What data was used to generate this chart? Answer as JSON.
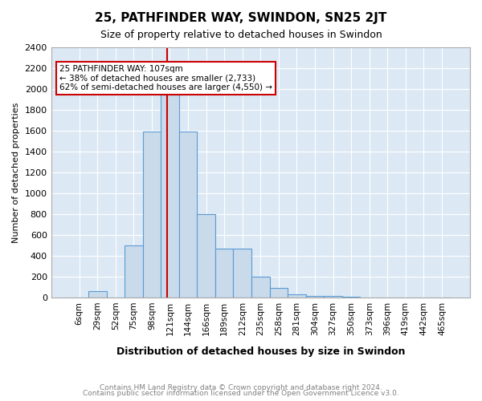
{
  "title": "25, PATHFINDER WAY, SWINDON, SN25 2JT",
  "subtitle": "Size of property relative to detached houses in Swindon",
  "xlabel": "Distribution of detached houses by size in Swindon",
  "ylabel": "Number of detached properties",
  "footer1": "Contains HM Land Registry data © Crown copyright and database right 2024.",
  "footer2": "Contains public sector information licensed under the Open Government Licence v3.0.",
  "bar_labels": [
    "6sqm",
    "29sqm",
    "52sqm",
    "75sqm",
    "98sqm",
    "121sqm",
    "144sqm",
    "166sqm",
    "189sqm",
    "212sqm",
    "235sqm",
    "258sqm",
    "281sqm",
    "304sqm",
    "327sqm",
    "350sqm",
    "373sqm",
    "396sqm",
    "419sqm",
    "442sqm",
    "465sqm"
  ],
  "bar_values": [
    0,
    60,
    0,
    500,
    1590,
    1950,
    1590,
    800,
    470,
    470,
    200,
    95,
    30,
    20,
    20,
    10,
    0,
    0,
    0,
    0,
    0
  ],
  "bar_color": "#c9daea",
  "bar_edgecolor": "#5b9bd5",
  "background_color": "#dce9f5",
  "vline_x": 4.85,
  "vline_color": "#cc0000",
  "annotation_text": "25 PATHFINDER WAY: 107sqm\n← 38% of detached houses are smaller (2,733)\n62% of semi-detached houses are larger (4,550) →",
  "annotation_box_edgecolor": "#cc0000",
  "ylim": [
    0,
    2400
  ],
  "yticks": [
    0,
    200,
    400,
    600,
    800,
    1000,
    1200,
    1400,
    1600,
    1800,
    2000,
    2200,
    2400
  ]
}
